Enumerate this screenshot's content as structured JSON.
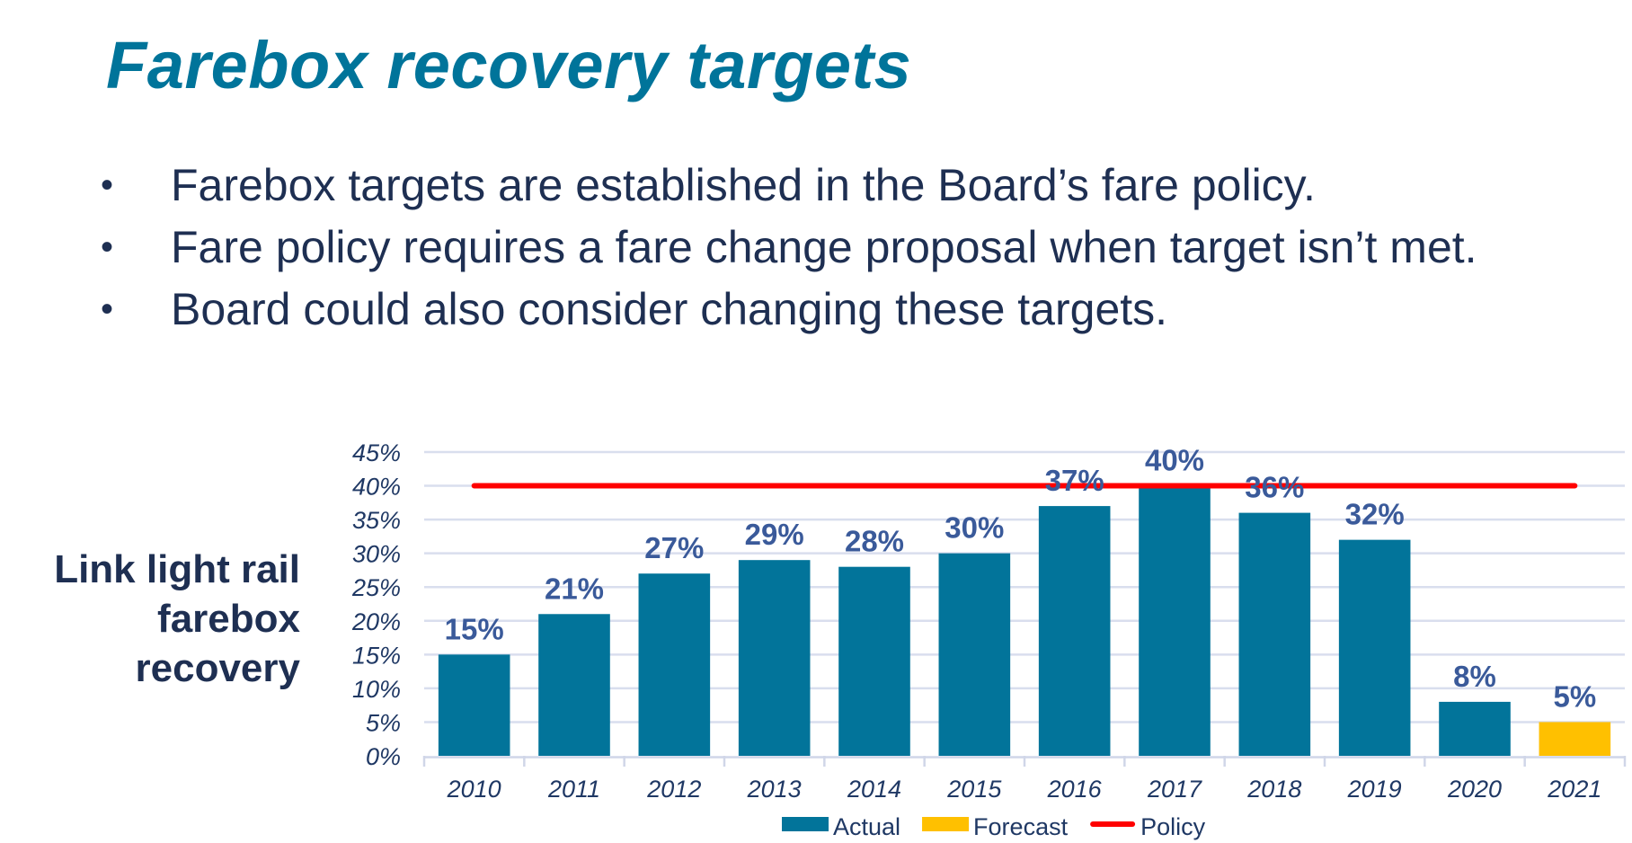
{
  "slide": {
    "title": "Farebox recovery targets",
    "bullets": [
      "Farebox targets are established in the Board’s fare policy.",
      "Fare policy requires a fare change proposal when target isn’t met.",
      "Board could also consider changing these targets."
    ],
    "bullet_glyph": "•",
    "side_label": [
      "Link light rail",
      "farebox",
      "recovery"
    ]
  },
  "chart_data": {
    "type": "bar",
    "title": "",
    "xlabel": "",
    "ylabel": "Link light rail farebox recovery",
    "categories": [
      "2010",
      "2011",
      "2012",
      "2013",
      "2014",
      "2015",
      "2016",
      "2017",
      "2018",
      "2019",
      "2020",
      "2021"
    ],
    "series": [
      {
        "name": "Actual",
        "color": "#02749A",
        "values": [
          0.15,
          0.21,
          0.27,
          0.29,
          0.28,
          0.3,
          0.37,
          0.4,
          0.36,
          0.32,
          0.08,
          null
        ]
      },
      {
        "name": "Forecast",
        "color": "#FFC000",
        "values": [
          null,
          null,
          null,
          null,
          null,
          null,
          null,
          null,
          null,
          null,
          null,
          0.05
        ]
      },
      {
        "name": "Policy",
        "type": "line",
        "color": "#FF0000",
        "values": [
          0.4,
          0.4,
          0.4,
          0.4,
          0.4,
          0.4,
          0.4,
          0.4,
          0.4,
          0.4,
          0.4,
          0.4
        ]
      }
    ],
    "data_labels": [
      "15%",
      "21%",
      "27%",
      "29%",
      "28%",
      "30%",
      "37%",
      "40%",
      "36%",
      "32%",
      "8%",
      "5%"
    ],
    "ylim": [
      0,
      0.45
    ],
    "yticks": [
      0,
      0.05,
      0.1,
      0.15,
      0.2,
      0.25,
      0.3,
      0.35,
      0.4,
      0.45
    ],
    "ytick_labels": [
      "0%",
      "5%",
      "10%",
      "15%",
      "20%",
      "25%",
      "30%",
      "35%",
      "40%",
      "45%"
    ],
    "grid": true,
    "legend": {
      "position": "bottom",
      "entries": [
        {
          "label": "Actual",
          "kind": "box",
          "color": "#02749A"
        },
        {
          "label": "Forecast",
          "kind": "box",
          "color": "#FFC000"
        },
        {
          "label": "Policy",
          "kind": "line",
          "color": "#FF0000"
        }
      ]
    },
    "colors": {
      "gridline": "#D9DEEE",
      "axis": "#D0D6E8",
      "data_label": "#3A5A9A",
      "tick_label": "#1F3864"
    }
  }
}
